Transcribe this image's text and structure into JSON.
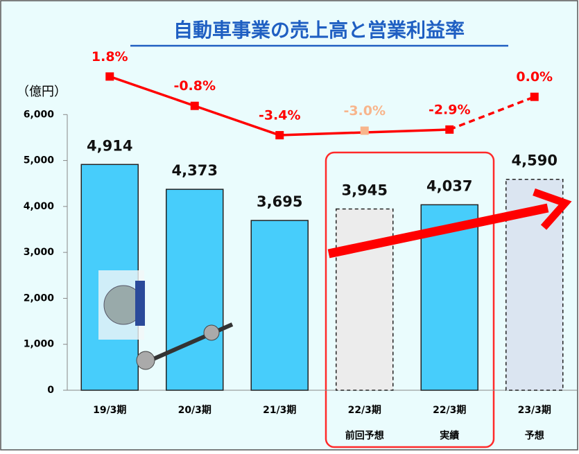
{
  "chart_data": {
    "type": "bar",
    "title": "自動車事業の売上高と営業利益率",
    "y_label": "（億円）",
    "categories": [
      "19/3期",
      "20/3期",
      "21/3期",
      "22/3期",
      "22/3期",
      "23/3期"
    ],
    "category_notes": [
      null,
      null,
      null,
      "前回予想",
      "実績",
      "予想"
    ],
    "values": [
      4914,
      4373,
      3695,
      3945,
      4037,
      4590
    ],
    "value_labels": [
      "4,914",
      "4,373",
      "3,695",
      "3,945",
      "4,037",
      "4,590"
    ],
    "colors": [
      "#47cdfb",
      "#47cdfb",
      "#47cdfb",
      "#ececec",
      "#47cdfb",
      "#dbe5f1"
    ],
    "dashed": [
      false,
      false,
      false,
      true,
      false,
      true
    ],
    "ylim": [
      0,
      7000
    ],
    "yticks": [
      0,
      {
        "value": 1000,
        "label": "1,000"
      },
      {
        "value": 2000,
        "label": "2,000"
      },
      {
        "value": 3000,
        "label": "3,000"
      },
      {
        "value": 4000,
        "label": "4,000"
      },
      {
        "value": 5000,
        "label": "5,000"
      },
      {
        "value": 6000,
        "label": "6,000"
      }
    ],
    "y2lim": [
      -26,
      2.5
    ],
    "series": [
      {
        "type": "line",
        "axis": "y2",
        "color": "#ff0000",
        "connect_gaps": true,
        "dashed_from": 4,
        "values": [
          1.8,
          -0.8,
          -3.4,
          null,
          -2.9,
          0.0
        ],
        "value_labels": [
          "1.8%",
          "-0.8%",
          "-3.4%",
          null,
          "-2.9%",
          "0.0%"
        ]
      },
      {
        "type": "scatter",
        "axis": "y2",
        "color": "#f8b58c",
        "values": [
          null,
          null,
          null,
          -3.0,
          null,
          null
        ],
        "value_labels": [
          null,
          null,
          null,
          "-3.0%",
          null,
          null
        ]
      }
    ]
  }
}
